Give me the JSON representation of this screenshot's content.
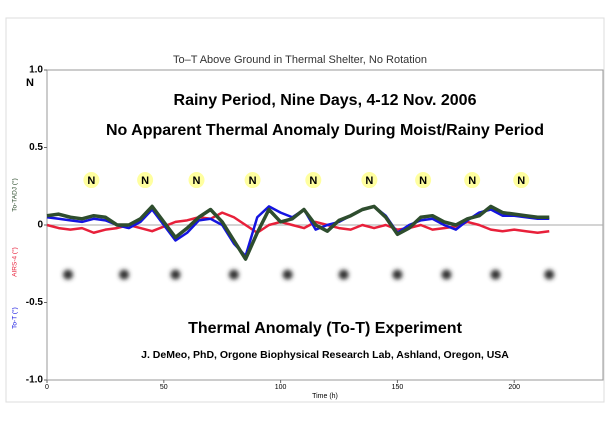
{
  "chart_data": {
    "type": "line",
    "title": "To–T Above Ground in Thermal Shelter, No Rotation",
    "y_note": "N",
    "annotations": [
      "Rainy Period, Nine Days, 4-12 Nov. 2006",
      "No Apparent Thermal Anomaly During Moist/Rainy Period",
      "Thermal Anomaly (To-T) Experiment",
      "J. DeMeo, PhD, Orgone Biophysical Research Lab, Ashland, Oregon, USA"
    ],
    "xlabel": "Time (h)",
    "xlim": [
      0,
      238
    ],
    "xticks": [
      0,
      50,
      100,
      150,
      200
    ],
    "ylim": [
      -1,
      1
    ],
    "yticks": [
      {
        "value": -1,
        "label": "-1.0"
      },
      -0.5,
      0,
      0.5,
      {
        "value": 1,
        "label": "1.0"
      }
    ],
    "n_markers": {
      "label": "N",
      "y": 0.29,
      "x": [
        19,
        42,
        64,
        88,
        114,
        138,
        161,
        182,
        203
      ]
    },
    "night_markers": {
      "y": -0.32,
      "x": [
        9,
        33,
        55,
        80,
        103,
        127,
        150,
        171,
        192,
        215
      ]
    },
    "x": [
      0,
      5,
      10,
      15,
      20,
      25,
      30,
      35,
      40,
      45,
      50,
      55,
      60,
      65,
      70,
      75,
      80,
      85,
      90,
      95,
      100,
      105,
      110,
      115,
      120,
      125,
      130,
      135,
      140,
      145,
      150,
      155,
      160,
      165,
      170,
      175,
      180,
      185,
      190,
      195,
      200,
      205,
      210,
      215
    ],
    "series": [
      {
        "name": "AIRS-4 (°)",
        "color": "#e8203a",
        "width": 2.5,
        "values": [
          0.0,
          -0.02,
          -0.03,
          -0.02,
          -0.05,
          -0.03,
          -0.02,
          0.0,
          -0.02,
          -0.04,
          -0.01,
          0.02,
          0.03,
          0.05,
          0.04,
          0.08,
          0.05,
          0.0,
          -0.05,
          0.0,
          0.02,
          0.0,
          -0.02,
          0.02,
          0.0,
          -0.02,
          -0.03,
          0.0,
          -0.02,
          0.0,
          -0.03,
          -0.02,
          0.0,
          -0.03,
          -0.02,
          -0.01,
          0.02,
          0.0,
          -0.03,
          -0.04,
          -0.03,
          -0.04,
          -0.05,
          -0.04
        ]
      },
      {
        "name": "To-T (°)",
        "color": "#1414e0",
        "width": 2.5,
        "values": [
          0.05,
          0.04,
          0.03,
          0.02,
          0.04,
          0.03,
          0.0,
          -0.02,
          0.02,
          0.1,
          0.0,
          -0.1,
          -0.05,
          0.03,
          0.04,
          0.0,
          -0.12,
          -0.2,
          0.05,
          0.12,
          0.08,
          0.05,
          0.1,
          -0.03,
          0.0,
          0.02,
          0.06,
          0.1,
          0.12,
          0.06,
          -0.05,
          0.0,
          0.03,
          0.04,
          0.0,
          -0.03,
          0.03,
          0.08,
          0.1,
          0.06,
          0.06,
          0.05,
          0.04,
          0.04
        ]
      },
      {
        "name": "To-TADJ (°)",
        "color": "#2e4d2e",
        "width": 3.5,
        "values": [
          0.06,
          0.07,
          0.05,
          0.04,
          0.06,
          0.05,
          0.0,
          0.0,
          0.04,
          0.12,
          0.02,
          -0.08,
          -0.02,
          0.05,
          0.1,
          0.02,
          -0.1,
          -0.22,
          -0.05,
          0.1,
          0.02,
          0.04,
          0.1,
          0.0,
          -0.04,
          0.03,
          0.06,
          0.1,
          0.12,
          0.05,
          -0.06,
          -0.02,
          0.05,
          0.06,
          0.02,
          0.0,
          0.04,
          0.06,
          0.12,
          0.08,
          0.07,
          0.06,
          0.05,
          0.05
        ]
      }
    ]
  }
}
